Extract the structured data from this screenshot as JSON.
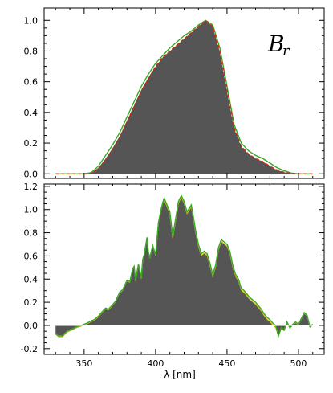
{
  "chart_data": [
    {
      "type": "area",
      "panel_label_main": "B",
      "panel_label_sub": "r",
      "xlim": [
        322,
        518
      ],
      "ylim": [
        -0.03,
        1.08
      ],
      "y_ticks": [
        0.0,
        0.2,
        0.4,
        0.6,
        0.8,
        1.0
      ],
      "y_tick_labels": [
        "0.0",
        "0.2",
        "0.4",
        "0.6",
        "0.8",
        "1.0"
      ],
      "colors": {
        "fill": "#555555",
        "green": "#33aa22",
        "red": "#dd2211",
        "white": "#ffffff",
        "yellow": "#ddbb00"
      },
      "x": [
        330,
        340,
        345,
        350,
        355,
        360,
        365,
        370,
        375,
        380,
        385,
        390,
        395,
        400,
        405,
        410,
        415,
        420,
        425,
        430,
        435,
        440,
        445,
        450,
        455,
        460,
        465,
        470,
        475,
        480,
        485,
        490,
        495,
        500,
        505,
        510
      ],
      "series": [
        {
          "role": "fill",
          "values": [
            0,
            0,
            0,
            0,
            0.005,
            0.04,
            0.1,
            0.17,
            0.25,
            0.35,
            0.45,
            0.55,
            0.63,
            0.7,
            0.76,
            0.8,
            0.84,
            0.88,
            0.92,
            0.96,
            1.0,
            0.96,
            0.8,
            0.55,
            0.3,
            0.18,
            0.13,
            0.1,
            0.08,
            0.05,
            0.025,
            0.01,
            0.003,
            0,
            0,
            0
          ]
        },
        {
          "role": "green",
          "values": [
            0,
            0,
            0,
            0,
            0.008,
            0.05,
            0.12,
            0.19,
            0.27,
            0.37,
            0.47,
            0.57,
            0.65,
            0.72,
            0.77,
            0.82,
            0.86,
            0.9,
            0.93,
            0.97,
            1.0,
            0.97,
            0.82,
            0.57,
            0.32,
            0.2,
            0.15,
            0.12,
            0.1,
            0.07,
            0.04,
            0.02,
            0.005,
            0,
            0,
            0
          ]
        },
        {
          "role": "red-dashed",
          "values": [
            0,
            0,
            0,
            0,
            0.004,
            0.035,
            0.09,
            0.16,
            0.24,
            0.34,
            0.44,
            0.54,
            0.62,
            0.7,
            0.76,
            0.8,
            0.84,
            0.88,
            0.92,
            0.96,
            1.0,
            0.96,
            0.8,
            0.55,
            0.3,
            0.18,
            0.13,
            0.1,
            0.08,
            0.05,
            0.025,
            0.01,
            0.003,
            0,
            0,
            0
          ]
        }
      ]
    },
    {
      "type": "area",
      "xlim": [
        322,
        518
      ],
      "ylim": [
        -0.25,
        1.22
      ],
      "xlabel": "λ [nm]",
      "x_ticks": [
        350,
        400,
        450,
        500
      ],
      "x_tick_labels": [
        "350",
        "400",
        "450",
        "500"
      ],
      "y_ticks": [
        -0.2,
        0.0,
        0.2,
        0.4,
        0.6,
        0.8,
        1.0,
        1.2
      ],
      "y_tick_labels": [
        "-0.2",
        "0.0",
        "0.2",
        "0.4",
        "0.6",
        "0.8",
        "1.0",
        "1.2"
      ],
      "colors": {
        "fill": "#555555",
        "green": "#33aa22",
        "yellow": "#ddbb00",
        "white": "#ffffff"
      },
      "x": [
        330,
        332,
        335,
        338,
        340,
        342,
        345,
        348,
        350,
        352,
        355,
        357,
        360,
        362,
        365,
        367,
        370,
        372,
        375,
        377,
        380,
        382,
        384,
        385,
        386,
        388,
        390,
        391,
        392,
        394,
        395,
        396,
        398,
        400,
        402,
        404,
        405,
        406,
        408,
        410,
        412,
        414,
        416,
        418,
        420,
        422,
        424,
        425,
        426,
        428,
        430,
        432,
        434,
        436,
        438,
        440,
        442,
        444,
        446,
        448,
        450,
        452,
        454,
        456,
        458,
        460,
        462,
        464,
        466,
        468,
        470,
        472,
        474,
        476,
        478,
        480,
        482,
        484,
        486,
        488,
        490,
        492,
        494,
        496,
        498,
        500,
        502,
        504,
        506,
        508,
        510
      ],
      "series": [
        {
          "role": "fill",
          "values": [
            -0.08,
            -0.1,
            -0.1,
            -0.06,
            -0.05,
            -0.04,
            -0.02,
            -0.01,
            0.0,
            0.01,
            0.03,
            0.04,
            0.07,
            0.1,
            0.14,
            0.13,
            0.17,
            0.2,
            0.28,
            0.3,
            0.38,
            0.37,
            0.48,
            0.5,
            0.38,
            0.52,
            0.4,
            0.56,
            0.6,
            0.75,
            0.62,
            0.58,
            0.68,
            0.6,
            0.88,
            1.0,
            1.05,
            1.08,
            1.02,
            0.96,
            0.75,
            0.9,
            1.05,
            1.1,
            1.05,
            0.96,
            1.0,
            1.02,
            0.95,
            0.8,
            0.68,
            0.6,
            0.62,
            0.6,
            0.52,
            0.42,
            0.5,
            0.65,
            0.72,
            0.7,
            0.68,
            0.62,
            0.5,
            0.42,
            0.38,
            0.3,
            0.28,
            0.25,
            0.22,
            0.2,
            0.18,
            0.15,
            0.12,
            0.08,
            0.05,
            0.03,
            0.0,
            -0.02,
            -0.1,
            -0.03,
            -0.05,
            0.02,
            -0.03,
            0.0,
            0.02,
            0.0,
            0.05,
            0.1,
            0.08,
            -0.02,
            0.0
          ]
        },
        {
          "role": "green",
          "values": [
            -0.07,
            -0.09,
            -0.09,
            -0.05,
            -0.04,
            -0.03,
            -0.01,
            0.0,
            0.01,
            0.02,
            0.04,
            0.05,
            0.08,
            0.11,
            0.15,
            0.14,
            0.18,
            0.21,
            0.29,
            0.31,
            0.39,
            0.38,
            0.49,
            0.51,
            0.39,
            0.53,
            0.41,
            0.57,
            0.61,
            0.76,
            0.63,
            0.59,
            0.69,
            0.61,
            0.89,
            1.01,
            1.06,
            1.1,
            1.04,
            0.98,
            0.77,
            0.92,
            1.07,
            1.12,
            1.07,
            0.98,
            1.02,
            1.04,
            0.97,
            0.82,
            0.7,
            0.62,
            0.64,
            0.62,
            0.54,
            0.44,
            0.52,
            0.67,
            0.74,
            0.72,
            0.7,
            0.64,
            0.52,
            0.44,
            0.4,
            0.32,
            0.3,
            0.27,
            0.24,
            0.22,
            0.2,
            0.17,
            0.14,
            0.1,
            0.07,
            0.05,
            0.02,
            0.0,
            -0.09,
            -0.02,
            -0.04,
            0.03,
            -0.02,
            0.01,
            0.03,
            0.01,
            0.06,
            0.11,
            0.09,
            -0.01,
            0.01
          ]
        }
      ]
    }
  ]
}
